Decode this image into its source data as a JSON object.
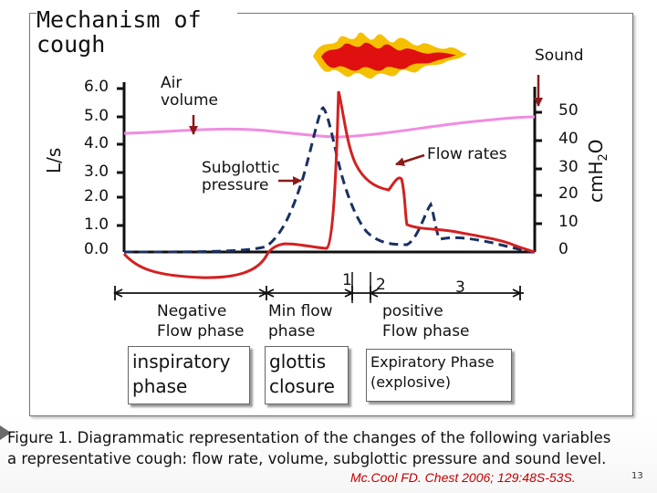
{
  "title_line1": "Mechanism of",
  "title_line2": "cough",
  "left_axis": {
    "label": "L/s",
    "ticks": [
      "6.0",
      "5.0",
      "4.0",
      "3.0",
      "2.0",
      "1.0",
      "0.0"
    ]
  },
  "right_axis": {
    "label_main": "cm",
    "label_h": "H",
    "label_sub": "2",
    "label_o": "O",
    "ticks": [
      "50",
      "40",
      "30",
      "20",
      "10",
      "0"
    ]
  },
  "labels": {
    "sound": "Sound",
    "air_volume_line1": "Air",
    "air_volume_line2": "volume",
    "subglottic_line1": "Subglottic",
    "subglottic_line2": "pressure",
    "flow_rates": "Flow rates"
  },
  "markers": [
    "1",
    "2",
    "3"
  ],
  "phases": [
    {
      "line1": "Negative",
      "line2": "Flow phase"
    },
    {
      "line1": "Min flow",
      "line2": "phase"
    },
    {
      "line1": "positive",
      "line2": "Flow phase"
    }
  ],
  "boxes": [
    {
      "line1": "inspiratory",
      "line2": "phase"
    },
    {
      "line1": "glottis",
      "line2": "closure"
    },
    {
      "line1": "Expiratory Phase",
      "line2": "(explosive)"
    }
  ],
  "caption_line1": "Figure 1. Diagrammatic representation of the changes of the following variables",
  "caption_line2": "a representative cough: flow rate, volume, subglottic pressure and sound level.",
  "citation": "Mc.Cool FD. Chest 2006; 129:48S-53S.",
  "page_number": "13",
  "colors": {
    "flow": "#d42020",
    "volume": "#f08ce0",
    "pressure": "#1a3060",
    "arrow": "#8b1a1a",
    "sound_outer": "#f5c000",
    "sound_inner": "#e01010"
  }
}
